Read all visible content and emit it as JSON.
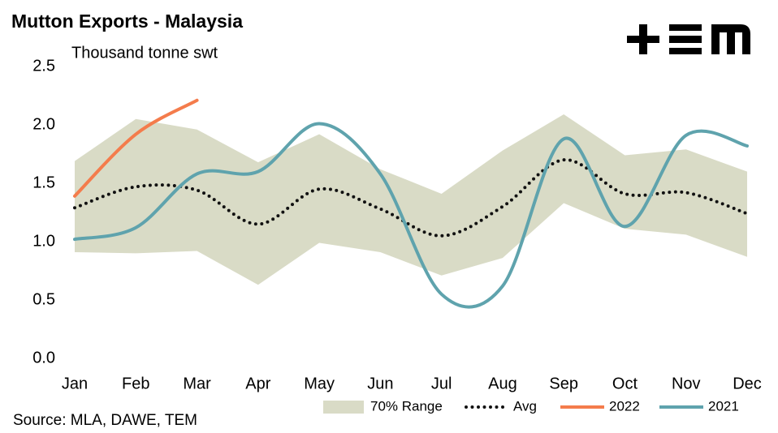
{
  "chart_data": {
    "type": "line",
    "title": "Mutton Exports - Malaysia",
    "subtitle": "Thousand tonne swt",
    "source": "Source: MLA, DAWE, TEM",
    "categories": [
      "Jan",
      "Feb",
      "Mar",
      "Apr",
      "May",
      "Jun",
      "Jul",
      "Aug",
      "Sep",
      "Oct",
      "Nov",
      "Dec"
    ],
    "ylim": [
      0,
      2.5
    ],
    "yticks": [
      {
        "value": 0,
        "label": "0.0"
      },
      0.5,
      {
        "value": 1,
        "label": "1.0"
      },
      1.5,
      {
        "value": 2,
        "label": "2.0"
      },
      2.5
    ],
    "grid": false,
    "legend": "bottom",
    "series": [
      {
        "name": "70% Range",
        "color": "#d9dbc6",
        "kind": "range",
        "values": [
          1.69,
          2.05,
          1.96,
          1.68,
          1.92,
          1.62,
          1.41,
          1.78,
          2.09,
          1.74,
          1.79,
          1.6
        ],
        "lower": [
          0.91,
          0.9,
          0.92,
          0.63,
          0.99,
          0.91,
          0.71,
          0.86,
          1.33,
          1.11,
          1.06,
          0.87
        ]
      },
      {
        "name": "Avg",
        "color": "#111111",
        "kind": "dotted",
        "values": [
          1.29,
          1.47,
          1.44,
          1.15,
          1.45,
          1.28,
          1.05,
          1.3,
          1.7,
          1.41,
          1.42,
          1.24
        ]
      },
      {
        "name": "2022",
        "color": "#f47c4c",
        "kind": "solid",
        "values": [
          1.39,
          1.92,
          2.21,
          null,
          null,
          null,
          null,
          null,
          null,
          null,
          null,
          null
        ]
      },
      {
        "name": "2021",
        "color": "#5fa3ad",
        "kind": "solid",
        "values": [
          1.02,
          1.12,
          1.58,
          1.6,
          2.01,
          1.58,
          0.55,
          0.62,
          1.88,
          1.13,
          1.91,
          1.82
        ]
      }
    ]
  }
}
